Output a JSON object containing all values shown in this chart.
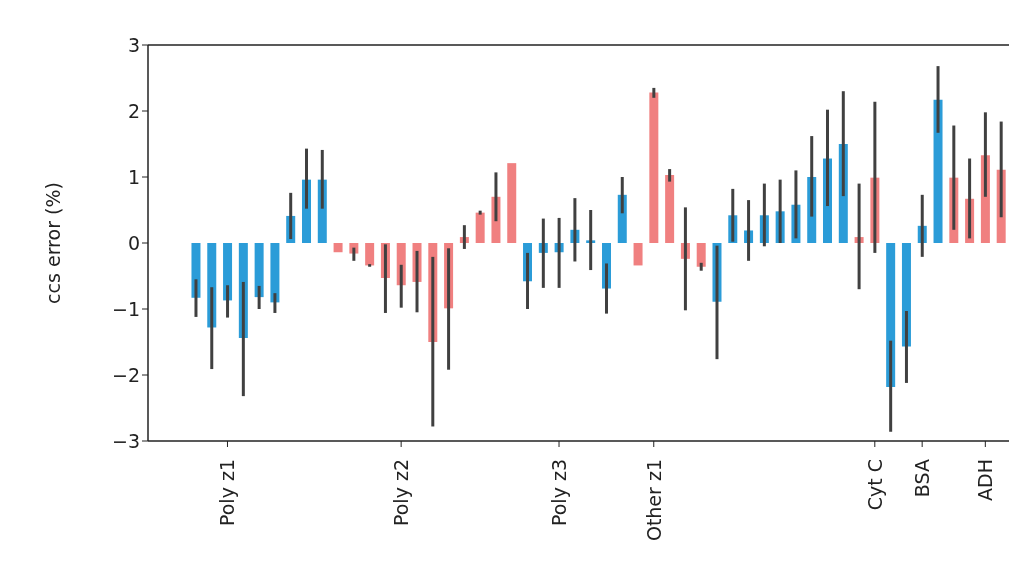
{
  "chart_data": {
    "type": "bar",
    "ylabel": "ccs error (%)",
    "categories": [
      null,
      null,
      "Poly z1",
      null,
      null,
      null,
      null,
      null,
      null,
      null,
      null,
      null,
      null,
      "Poly z2",
      null,
      null,
      null,
      null,
      null,
      null,
      null,
      null,
      null,
      "Poly z3",
      null,
      null,
      null,
      null,
      null,
      "Other z1",
      null,
      null,
      null,
      null,
      null,
      null,
      null,
      null,
      null,
      null,
      null,
      null,
      null,
      "Cyt C",
      null,
      null,
      "BSA",
      null,
      null,
      null,
      "ADH",
      null
    ],
    "values": [
      -0.83,
      -1.28,
      -0.87,
      -1.44,
      -0.82,
      -0.9,
      0.41,
      0.96,
      0.96,
      -0.14,
      -0.16,
      -0.34,
      -0.53,
      -0.64,
      -0.59,
      -1.5,
      -0.99,
      0.09,
      0.46,
      0.7,
      1.21,
      -0.58,
      -0.15,
      -0.14,
      0.2,
      0.04,
      -0.69,
      0.73,
      -0.34,
      2.28,
      1.03,
      -0.24,
      -0.36,
      -0.89,
      0.42,
      0.19,
      0.42,
      0.48,
      0.58,
      1.0,
      1.28,
      1.5,
      0.09,
      0.99,
      -2.18,
      -1.57,
      0.26,
      2.17,
      0.99,
      0.67,
      1.33,
      1.11
    ],
    "errors": [
      [
        -1.12,
        -0.55
      ],
      [
        -1.91,
        -0.67
      ],
      [
        -1.13,
        -0.64
      ],
      [
        -2.32,
        -0.59
      ],
      [
        -1.0,
        -0.65
      ],
      [
        -1.06,
        -0.76
      ],
      [
        0.06,
        0.76
      ],
      [
        0.52,
        1.43
      ],
      [
        0.52,
        1.41
      ],
      null,
      [
        -0.27,
        -0.07
      ],
      [
        -0.36,
        -0.32
      ],
      [
        -1.06,
        -0.02
      ],
      [
        -0.98,
        -0.33
      ],
      [
        -1.05,
        -0.12
      ],
      [
        -2.78,
        -0.21
      ],
      [
        -1.92,
        -0.08
      ],
      [
        -0.09,
        0.27
      ],
      [
        0.43,
        0.49
      ],
      [
        0.33,
        1.07
      ],
      null,
      [
        -1.0,
        -0.15
      ],
      [
        -0.68,
        0.37
      ],
      [
        -0.68,
        0.38
      ],
      [
        -0.28,
        0.68
      ],
      [
        -0.41,
        0.5
      ],
      [
        -1.07,
        -0.31
      ],
      [
        0.45,
        1.0
      ],
      null,
      [
        2.2,
        2.35
      ],
      [
        0.93,
        1.12
      ],
      [
        -1.02,
        0.54
      ],
      [
        -0.42,
        -0.3
      ],
      [
        -1.76,
        -0.04
      ],
      [
        0.02,
        0.82
      ],
      [
        -0.27,
        0.65
      ],
      [
        -0.05,
        0.9
      ],
      [
        0.0,
        0.96
      ],
      [
        0.07,
        1.1
      ],
      [
        0.4,
        1.62
      ],
      [
        0.56,
        2.02
      ],
      [
        0.71,
        2.3
      ],
      [
        -0.7,
        0.9
      ],
      [
        -0.15,
        2.14
      ],
      [
        -2.86,
        -1.48
      ],
      [
        -2.12,
        -1.03
      ],
      [
        -0.21,
        0.73
      ],
      [
        1.67,
        2.68
      ],
      [
        0.2,
        1.78
      ],
      [
        0.07,
        1.28
      ],
      [
        0.7,
        1.98
      ],
      [
        0.39,
        1.84
      ]
    ],
    "colors": [
      "#2b9cd8",
      "#2b9cd8",
      "#2b9cd8",
      "#2b9cd8",
      "#2b9cd8",
      "#2b9cd8",
      "#2b9cd8",
      "#2b9cd8",
      "#2b9cd8",
      "#f08080",
      "#f08080",
      "#f08080",
      "#f08080",
      "#f08080",
      "#f08080",
      "#f08080",
      "#f08080",
      "#f08080",
      "#f08080",
      "#f08080",
      "#f08080",
      "#2b9cd8",
      "#2b9cd8",
      "#2b9cd8",
      "#2b9cd8",
      "#2b9cd8",
      "#2b9cd8",
      "#2b9cd8",
      "#f08080",
      "#f08080",
      "#f08080",
      "#f08080",
      "#f08080",
      "#2b9cd8",
      "#2b9cd8",
      "#2b9cd8",
      "#2b9cd8",
      "#2b9cd8",
      "#2b9cd8",
      "#2b9cd8",
      "#2b9cd8",
      "#2b9cd8",
      "#f08080",
      "#f08080",
      "#2b9cd8",
      "#2b9cd8",
      "#2b9cd8",
      "#2b9cd8",
      "#f08080",
      "#f08080",
      "#f08080",
      "#f08080"
    ],
    "ylim": [
      -3,
      3
    ],
    "yticks": [
      {
        "value": -3,
        "label": "−3"
      },
      {
        "value": -2,
        "label": "−2"
      },
      {
        "value": -1,
        "label": "−1"
      },
      0,
      1,
      2,
      3
    ],
    "grid": false,
    "legend": false
  }
}
